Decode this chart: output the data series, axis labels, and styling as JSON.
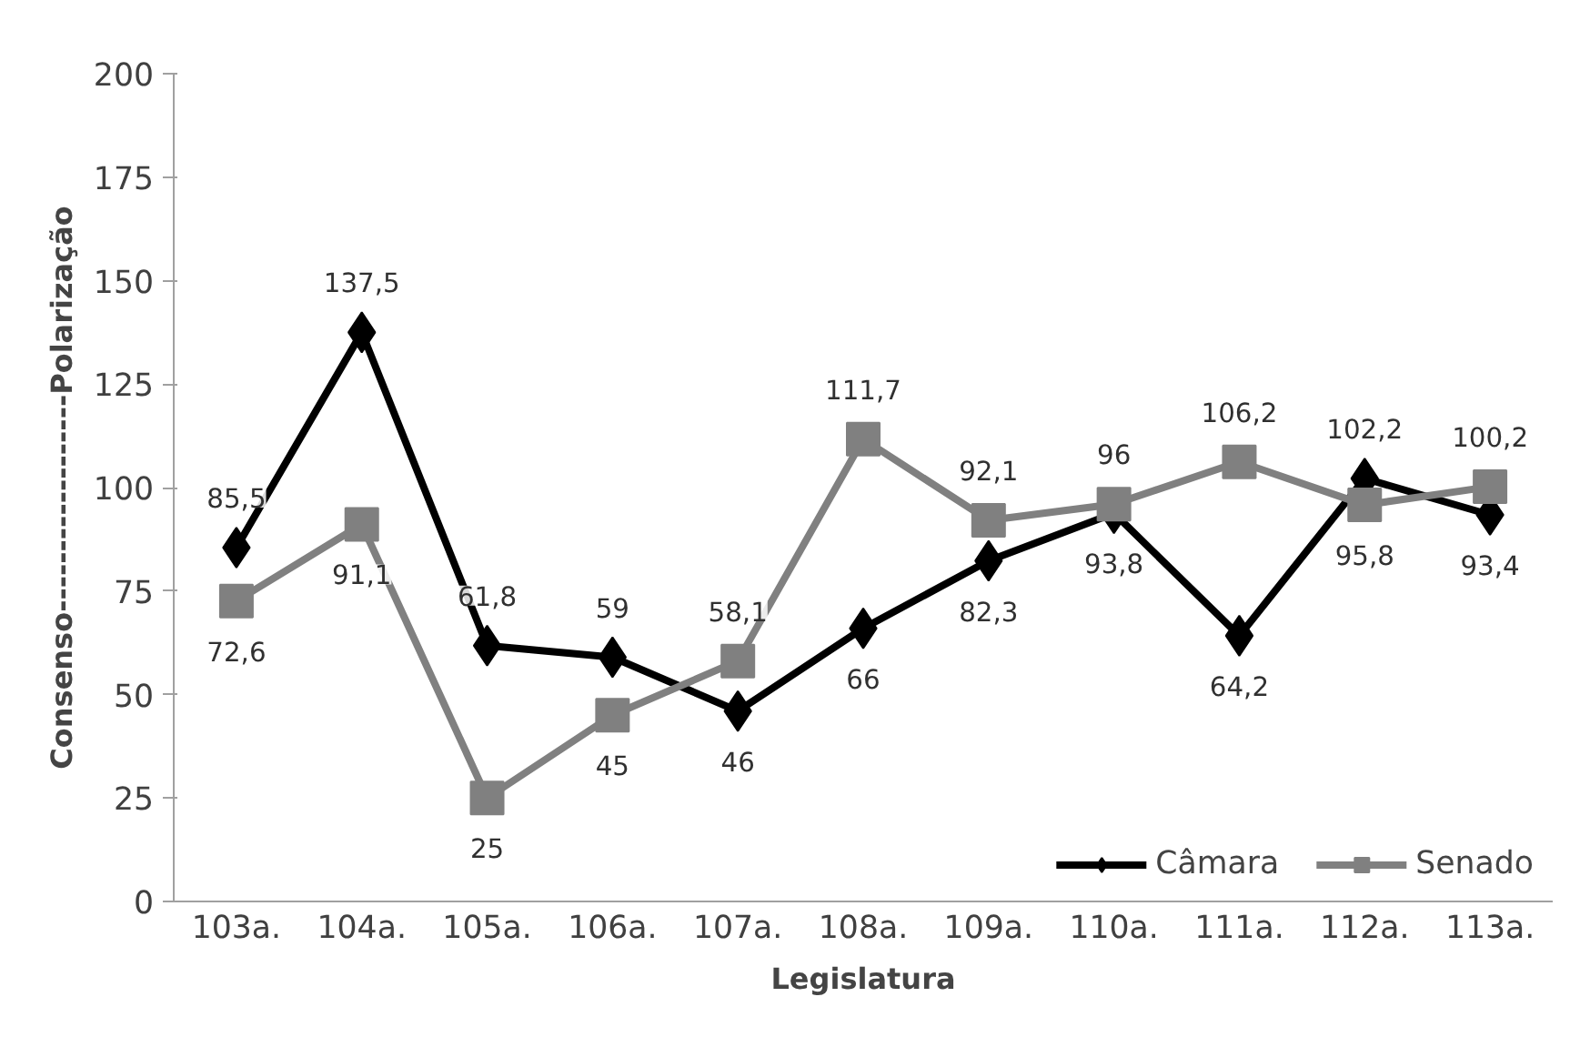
{
  "chart_data": {
    "type": "line",
    "xlabel": "Legislatura",
    "ylabel": "Consenso------------------Polarização",
    "categories": [
      "103a.",
      "104a.",
      "105a.",
      "106a.",
      "107a.",
      "108a.",
      "109a.",
      "110a.",
      "111a.",
      "112a.",
      "113a."
    ],
    "series": [
      {
        "name": "Câmara",
        "color": "#000000",
        "marker": "diamond",
        "values": [
          85.5,
          137.5,
          61.8,
          59,
          46,
          66,
          82.3,
          93.8,
          64.2,
          102.2,
          93.4
        ],
        "value_labels": [
          "85,5",
          "137,5",
          "61,8",
          "59",
          "46",
          "66",
          "82,3",
          "93,8",
          "64,2",
          "102,2",
          "93,4"
        ]
      },
      {
        "name": "Senado",
        "color": "#808080",
        "marker": "square",
        "values": [
          72.6,
          91.1,
          25,
          45,
          58.1,
          111.7,
          92.1,
          96,
          106.2,
          95.8,
          100.2
        ],
        "value_labels": [
          "72,6",
          "91,1",
          "25",
          "45",
          "58,1",
          "111,7",
          "92,1",
          "96",
          "106,2",
          "95,8",
          "100,2"
        ]
      }
    ],
    "ylim": [
      0,
      200
    ],
    "yticks": [
      0,
      25,
      50,
      75,
      100,
      125,
      150,
      175,
      200
    ],
    "grid": false,
    "legend": "bottom right",
    "line_style": "solid"
  }
}
